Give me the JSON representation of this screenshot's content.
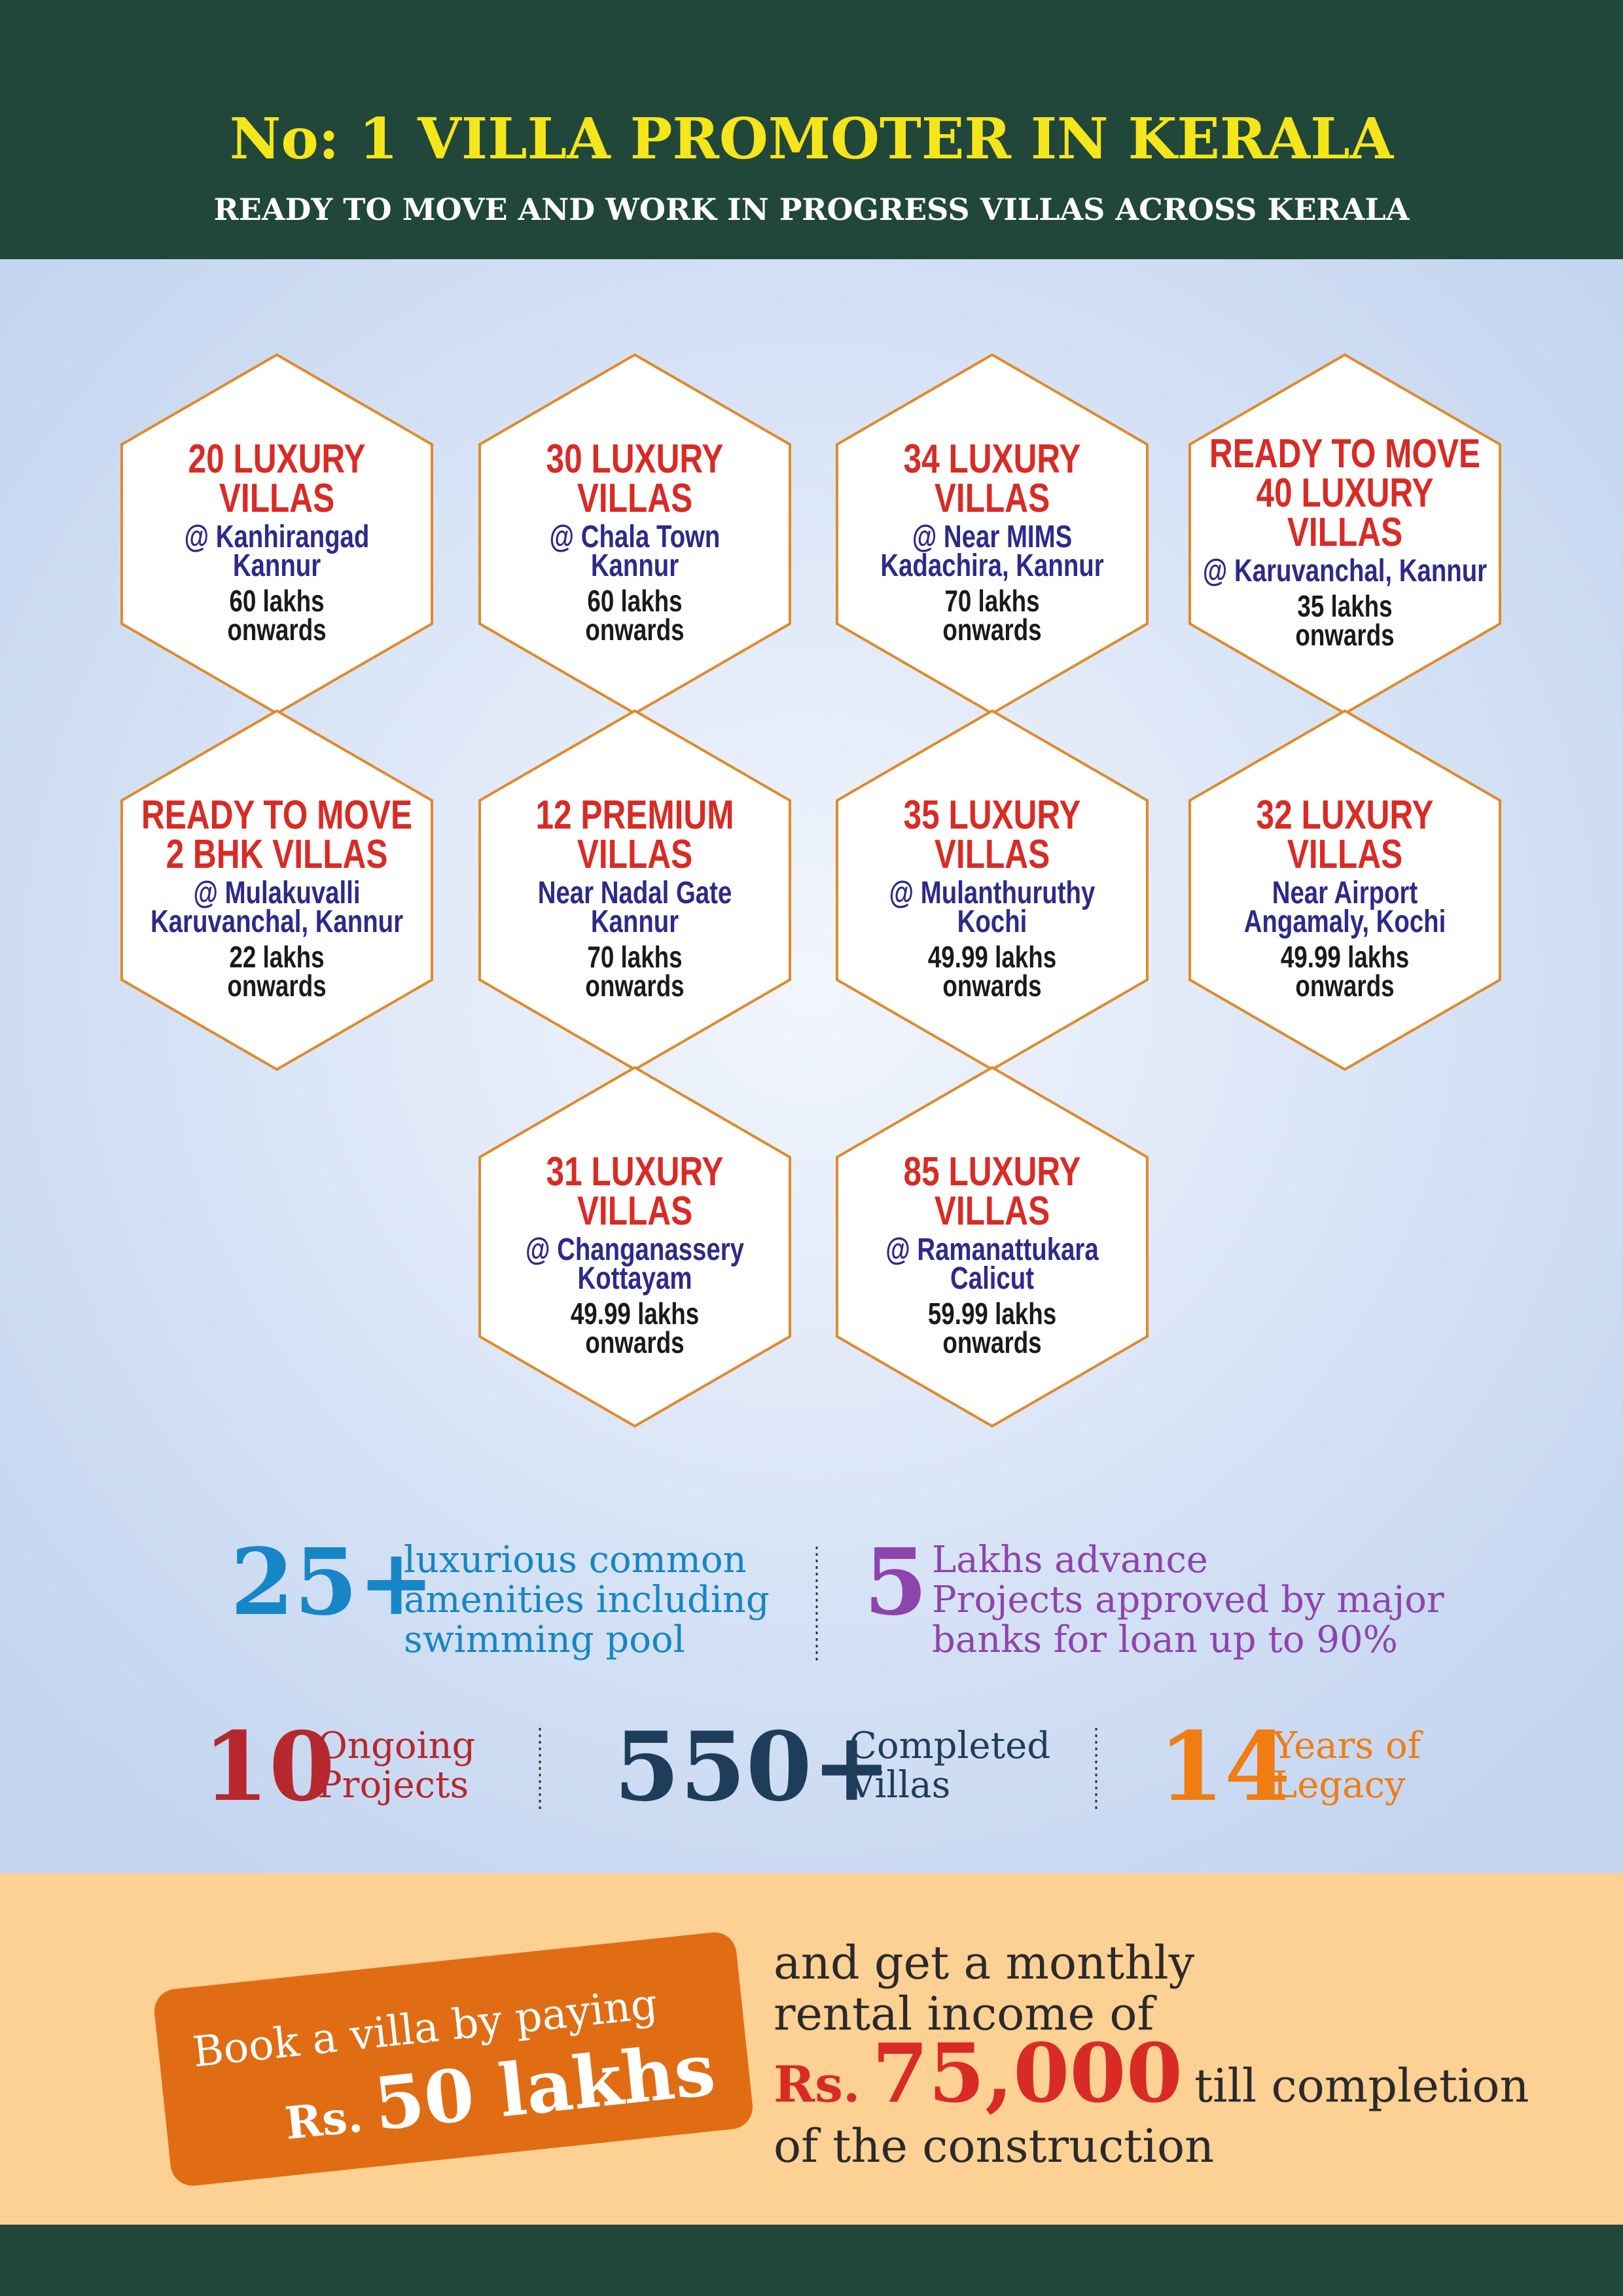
{
  "header": {
    "title": "No: 1  VILLA PROMOTER IN KERALA",
    "subtitle": "READY TO MOVE AND WORK IN PROGRESS VILLAS ACROSS KERALA"
  },
  "hexagons": [
    {
      "heading": [
        "20 LUXURY",
        "VILLAS"
      ],
      "location": [
        "@ Kanhirangad",
        "Kannur"
      ],
      "price": [
        "60 lakhs",
        "onwards"
      ]
    },
    {
      "heading": [
        "30 LUXURY",
        "VILLAS"
      ],
      "location": [
        "@ Chala Town",
        "Kannur"
      ],
      "price": [
        "60 lakhs",
        "onwards"
      ]
    },
    {
      "heading": [
        "34 LUXURY",
        "VILLAS"
      ],
      "location": [
        "@ Near MIMS",
        "Kadachira, Kannur"
      ],
      "price": [
        "70 lakhs",
        "onwards"
      ]
    },
    {
      "heading": [
        "READY TO MOVE",
        "40 LUXURY",
        "VILLAS"
      ],
      "location": [
        "@ Karuvanchal, Kannur"
      ],
      "price": [
        "35 lakhs",
        "onwards"
      ]
    },
    {
      "heading": [
        "READY TO MOVE",
        "2 BHK VILLAS"
      ],
      "location": [
        "@ Mulakuvalli",
        "Karuvanchal, Kannur"
      ],
      "price": [
        "22 lakhs",
        "onwards"
      ]
    },
    {
      "heading": [
        "12 PREMIUM",
        "VILLAS"
      ],
      "location": [
        "Near Nadal Gate",
        "Kannur"
      ],
      "price": [
        "70 lakhs",
        "onwards"
      ]
    },
    {
      "heading": [
        "35 LUXURY",
        "VILLAS"
      ],
      "location": [
        "@ Mulanthuruthy",
        "Kochi"
      ],
      "price": [
        "49.99 lakhs",
        "onwards"
      ]
    },
    {
      "heading": [
        "32 LUXURY",
        "VILLAS"
      ],
      "location": [
        "Near Airport",
        "Angamaly, Kochi"
      ],
      "price": [
        "49.99 lakhs",
        "onwards"
      ]
    },
    {
      "heading": [
        "31 LUXURY",
        "VILLAS"
      ],
      "location": [
        "@ Changanassery",
        "Kottayam"
      ],
      "price": [
        "49.99 lakhs",
        "onwards"
      ]
    },
    {
      "heading": [
        "85 LUXURY",
        "VILLAS"
      ],
      "location": [
        "@ Ramanattukara",
        "Calicut"
      ],
      "price": [
        "59.99 lakhs",
        "onwards"
      ]
    }
  ],
  "stats": {
    "amenities": {
      "number": "25+",
      "text": [
        "luxurious  common",
        "amenities including",
        "swimming pool"
      ]
    },
    "advance": {
      "number": "5",
      "text": [
        "Lakhs advance",
        "Projects approved by major",
        "banks for loan up to 90%"
      ]
    },
    "ongoing": {
      "number": "10",
      "text": [
        "Ongoing",
        "Projects"
      ]
    },
    "completed": {
      "number": "550+",
      "text": [
        "Completed",
        "Villas"
      ]
    },
    "legacy": {
      "number": "14",
      "text": [
        "Years of",
        "Legacy"
      ]
    }
  },
  "promo": {
    "badge": "Book a villa by paying",
    "amount": [
      "Rs.",
      "50 lakhs"
    ],
    "rental": {
      "lines": [
        "and get  a monthly",
        "rental income of"
      ],
      "prefix": "Rs.",
      "amount": "75,000",
      "suffix": "till completion",
      "last": "of the construction"
    }
  }
}
